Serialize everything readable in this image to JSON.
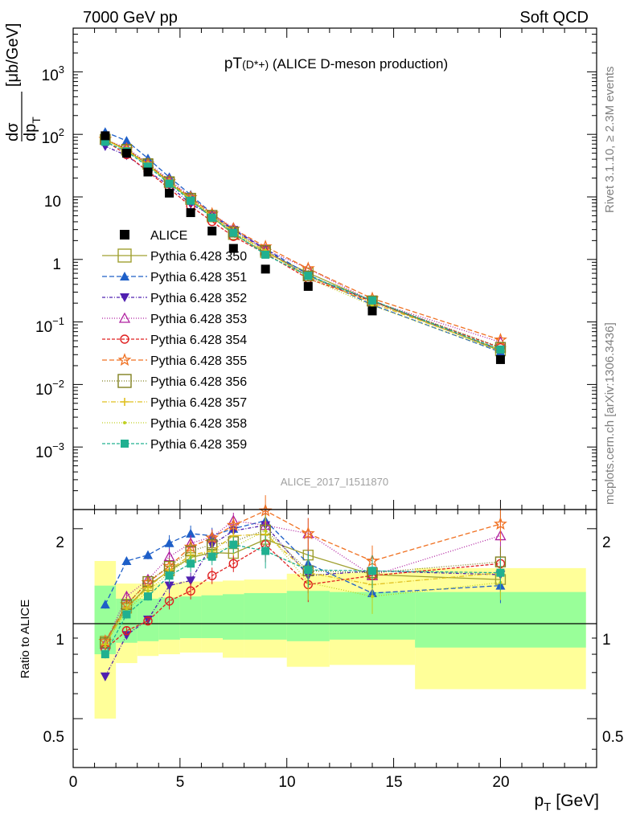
{
  "header": {
    "left": "7000 GeV pp",
    "right": "Soft QCD"
  },
  "main_plot": {
    "title_main": "pT",
    "title_particle": "(D*+)",
    "title_rest": " (ALICE D-meson production)",
    "analysis_id": "ALICE_2017_I1511870",
    "side_label_top": "Rivet 3.1.10, ≥ 2.3M events",
    "side_label_bottom": "mcplots.cern.ch [arXiv:1306.3436]",
    "ylabel_num": "dσ",
    "ylabel_den": "dp",
    "ylabel_sub": "T",
    "ylabel_unit": "[μb/GeV]",
    "ytick_labels": {
      "e3": "10",
      "e3sup": "3",
      "e2": "10",
      "e2sup": "2",
      "e1": "10",
      "e0": "1",
      "em1": "10",
      "em1sup": "−1",
      "em2": "10",
      "em2sup": "−2",
      "em3": "10",
      "em3sup": "−3"
    }
  },
  "ratio_plot": {
    "ylabel": "Ratio to ALICE",
    "ytick_labels": [
      "0.5",
      "1",
      "2"
    ],
    "xtick_labels": [
      "0",
      "5",
      "10",
      "15",
      "20"
    ],
    "xlabel_main": "p",
    "xlabel_sub": "T",
    "xlabel_unit": "[GeV]"
  },
  "chart_data": {
    "type": "scatter",
    "x": [
      1.5,
      2.5,
      3.5,
      4.5,
      5.5,
      6.5,
      7.5,
      9.0,
      11.0,
      14.0,
      20.0
    ],
    "x_bins": [
      [
        1,
        2
      ],
      [
        2,
        3
      ],
      [
        3,
        4
      ],
      [
        4,
        5
      ],
      [
        5,
        6
      ],
      [
        6,
        7
      ],
      [
        7,
        8
      ],
      [
        8,
        10
      ],
      [
        10,
        12
      ],
      [
        12,
        16
      ],
      [
        16,
        24
      ]
    ],
    "xlim": [
      0,
      24.5
    ],
    "ylim": [
      0.0001,
      5000
    ],
    "yscale": "log",
    "ratio_ylim": [
      0.35,
      2.3
    ],
    "ratio_yscale": "log",
    "data": {
      "name": "ALICE",
      "values": [
        95,
        50,
        25,
        11.5,
        5.6,
        2.85,
        1.5,
        0.7,
        0.37,
        0.15,
        0.025
      ]
    },
    "bands": {
      "stat_lo": [
        0.8,
        0.87,
        0.88,
        0.89,
        0.9,
        0.9,
        0.89,
        0.89,
        0.88,
        0.89,
        0.84
      ],
      "stat_hi": [
        1.32,
        1.2,
        1.2,
        1.21,
        1.22,
        1.23,
        1.24,
        1.25,
        1.27,
        1.26,
        1.26
      ],
      "syst_lo": [
        0.5,
        0.75,
        0.79,
        0.8,
        0.81,
        0.81,
        0.78,
        0.78,
        0.73,
        0.74,
        0.62
      ],
      "syst_hi": [
        1.58,
        1.34,
        1.34,
        1.35,
        1.36,
        1.36,
        1.37,
        1.38,
        1.44,
        1.45,
        1.5
      ]
    },
    "series": [
      {
        "name": "Pythia 6.428 350",
        "color": "#a0a030",
        "marker": "square-open",
        "dash": "solid",
        "ratio": [
          0.88,
          1.12,
          1.32,
          1.47,
          1.62,
          1.68,
          1.67,
          1.85,
          1.65,
          1.43,
          1.38
        ]
      },
      {
        "name": "Pythia 6.428 351",
        "color": "#1e5fc8",
        "marker": "triangle-up",
        "dash": "6,3",
        "ratio": [
          1.15,
          1.58,
          1.65,
          1.8,
          1.93,
          1.9,
          2.0,
          2.12,
          1.55,
          1.25,
          1.32
        ]
      },
      {
        "name": "Pythia 6.428 352",
        "color": "#5020b0",
        "marker": "triangle-down",
        "dash": "4,2,1,2",
        "ratio": [
          0.68,
          0.92,
          1.03,
          1.32,
          1.37,
          1.78,
          1.97,
          2.05,
          1.42,
          1.47,
          1.43
        ]
      },
      {
        "name": "Pythia 6.428 353",
        "color": "#b020a0",
        "marker": "triangle-up-open",
        "dash": "1,2",
        "ratio": [
          0.86,
          1.22,
          1.38,
          1.63,
          1.8,
          1.88,
          2.12,
          2.05,
          1.93,
          1.42,
          1.9
        ]
      },
      {
        "name": "Pythia 6.428 354",
        "color": "#e02020",
        "marker": "circle-open",
        "dash": "4,2",
        "ratio": [
          0.83,
          0.95,
          1.02,
          1.18,
          1.27,
          1.42,
          1.55,
          1.78,
          1.33,
          1.42,
          1.55
        ]
      },
      {
        "name": "Pythia 6.428 355",
        "color": "#f07020",
        "marker": "star-open",
        "dash": "6,3",
        "ratio": [
          0.88,
          1.15,
          1.35,
          1.52,
          1.75,
          1.87,
          2.05,
          2.28,
          1.93,
          1.58,
          2.07
        ]
      },
      {
        "name": "Pythia 6.428 356",
        "color": "#808020",
        "marker": "square-open",
        "dash": "1,2",
        "ratio": [
          0.87,
          1.15,
          1.36,
          1.52,
          1.7,
          1.78,
          1.82,
          1.98,
          1.47,
          1.45,
          1.57
        ]
      },
      {
        "name": "Pythia 6.428 357",
        "color": "#e0c020",
        "marker": "cross",
        "dash": "6,2,1,2",
        "ratio": [
          0.86,
          1.12,
          1.3,
          1.48,
          1.65,
          1.7,
          1.9,
          1.92,
          1.45,
          1.33,
          1.45
        ]
      },
      {
        "name": "Pythia 6.428 358",
        "color": "#c0d020",
        "marker": "dot",
        "dash": "1,2",
        "ratio": [
          0.86,
          1.1,
          1.27,
          1.45,
          1.62,
          1.7,
          1.75,
          1.97,
          1.35,
          1.22,
          1.35
        ]
      },
      {
        "name": "Pythia 6.428 359",
        "color": "#20b090",
        "marker": "square",
        "dash": "4,2",
        "ratio": [
          0.8,
          1.07,
          1.22,
          1.42,
          1.55,
          1.63,
          1.78,
          1.7,
          1.48,
          1.47,
          1.45
        ]
      }
    ]
  }
}
